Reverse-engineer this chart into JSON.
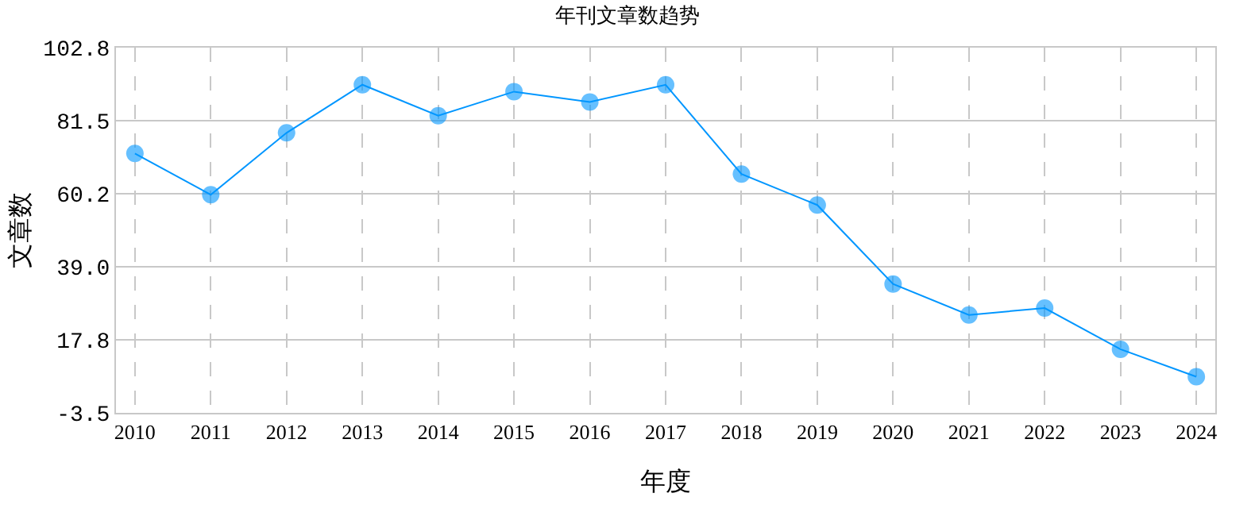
{
  "chart_data": {
    "type": "line",
    "title": "年刊文章数趋势",
    "xlabel": "年度",
    "ylabel": "文章数",
    "categories": [
      "2010",
      "2011",
      "2012",
      "2013",
      "2014",
      "2015",
      "2016",
      "2017",
      "2018",
      "2019",
      "2020",
      "2021",
      "2022",
      "2023",
      "2024"
    ],
    "series": [
      {
        "color": "#0096ff",
        "values": [
          72,
          60,
          78,
          92,
          83,
          90,
          87,
          92,
          66,
          57,
          34,
          25,
          27,
          15,
          7
        ]
      }
    ],
    "ylim": [
      -3.5,
      102.8
    ],
    "yticks": [
      {
        "value": -3.5,
        "label": "-3.5"
      },
      {
        "value": 17.8,
        "label": "17.8"
      },
      {
        "value": 39.0,
        "label": "39.0"
      },
      {
        "value": 60.2,
        "label": "60.2"
      },
      {
        "value": 81.5,
        "label": "81.5"
      },
      {
        "value": 102.8,
        "label": "102.8"
      }
    ],
    "grid": true,
    "marker": "circle",
    "line_style": "solid"
  }
}
